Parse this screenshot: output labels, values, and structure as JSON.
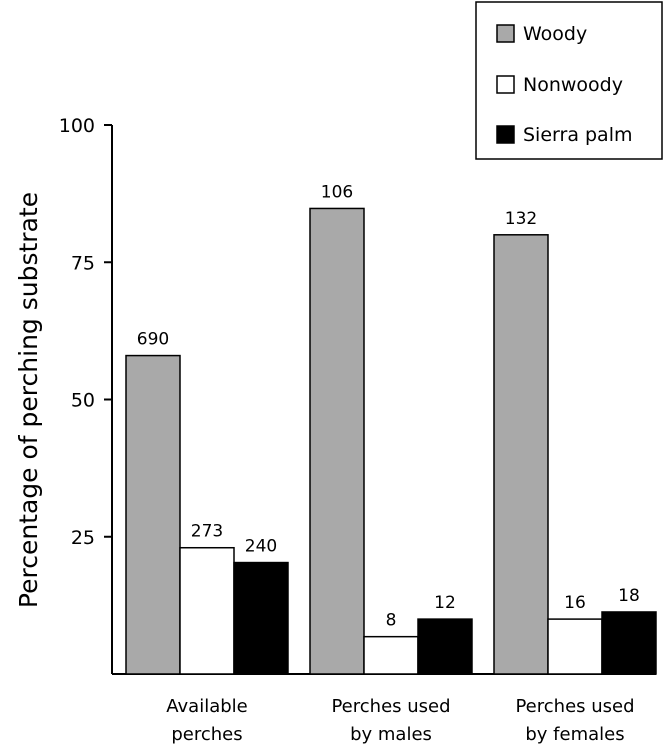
{
  "chart_data": {
    "type": "bar",
    "title": "",
    "xlabel": "",
    "ylabel": "Percentage of perching substrate",
    "ylim": [
      0,
      100
    ],
    "yticks": [
      25,
      50,
      75,
      100
    ],
    "categories": [
      [
        "Available",
        "perches"
      ],
      [
        "Perches used",
        "by males"
      ],
      [
        "Perches used",
        "by females"
      ]
    ],
    "series": [
      {
        "name": "Woody",
        "color": "#a9a9a9",
        "values": [
          58,
          84.8,
          80
        ],
        "labels": [
          "690",
          "106",
          "132"
        ]
      },
      {
        "name": "Nonwoody",
        "color": "#ffffff",
        "values": [
          23,
          6.8,
          10
        ],
        "labels": [
          "273",
          "8",
          "16"
        ]
      },
      {
        "name": "Sierra palm",
        "color": "#000000",
        "values": [
          20.3,
          10,
          11.3
        ],
        "labels": [
          "240",
          "12",
          "18"
        ]
      }
    ],
    "legend": {
      "position": "top-right"
    },
    "grid": false
  }
}
